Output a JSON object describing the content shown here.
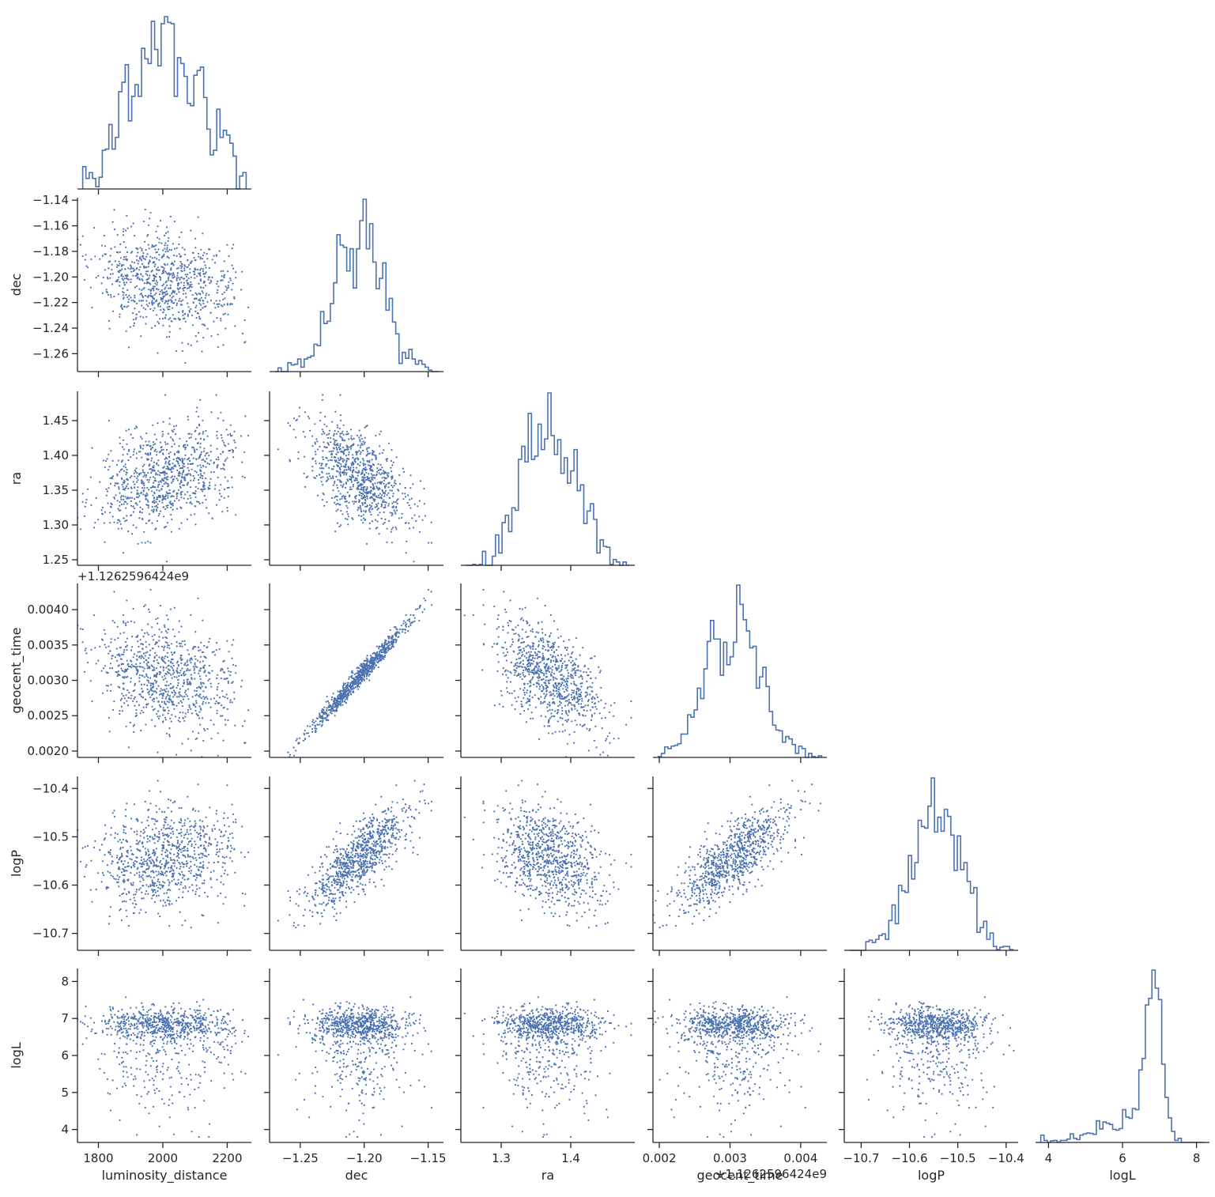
{
  "chart_data": {
    "type": "scatter",
    "title": "",
    "layout": "corner-pairplot",
    "variables": [
      "luminosity_distance",
      "dec",
      "ra",
      "geocent_time",
      "logP",
      "logL"
    ],
    "axis_labels": {
      "x": [
        "luminosity_distance",
        "dec",
        "ra",
        "geocent_time",
        "logP",
        "logL"
      ],
      "y": [
        "",
        "dec",
        "ra",
        "geocent_time",
        "logP",
        "logL"
      ]
    },
    "offset_text": "+1.1262596424e9",
    "series_color": "#4c72b0",
    "ranges": {
      "luminosity_distance": [
        1735,
        2275
      ],
      "dec": [
        -1.274,
        -1.138
      ],
      "ra": [
        1.242,
        1.492
      ],
      "geocent_time": [
        0.00191,
        0.00437
      ],
      "logP": [
        -10.735,
        -10.375
      ],
      "logL": [
        3.65,
        8.35
      ]
    },
    "ticks": {
      "luminosity_distance": [
        1800,
        2000,
        2200
      ],
      "dec": [
        -1.26,
        -1.24,
        -1.22,
        -1.2,
        -1.18,
        -1.16,
        -1.14
      ],
      "dec_x": [
        -1.25,
        -1.2,
        -1.15
      ],
      "ra": [
        1.25,
        1.3,
        1.35,
        1.4,
        1.45
      ],
      "ra_x": [
        1.3,
        1.4
      ],
      "geocent_time": [
        0.002,
        0.0025,
        0.003,
        0.0035,
        0.004
      ],
      "geocent_time_x": [
        0.002,
        0.003,
        0.004
      ],
      "logP": [
        -10.7,
        -10.6,
        -10.5,
        -10.4
      ],
      "logL": [
        4,
        5,
        6,
        7,
        8
      ],
      "logL_x": [
        4,
        6,
        8
      ]
    },
    "tick_labels": {
      "luminosity_distance": [
        "1800",
        "2000",
        "2200"
      ],
      "dec_y": [
        "−1.26",
        "−1.24",
        "−1.22",
        "−1.20",
        "−1.18",
        "−1.16",
        "−1.14"
      ],
      "dec_x": [
        "−1.25",
        "−1.20",
        "−1.15"
      ],
      "ra_y": [
        "1.25",
        "1.30",
        "1.35",
        "1.40",
        "1.45"
      ],
      "ra_x": [
        "1.3",
        "1.4"
      ],
      "geocent_time_y": [
        "0.0020",
        "0.0025",
        "0.0030",
        "0.0035",
        "0.0040"
      ],
      "geocent_time_x": [
        "0.002",
        "0.003",
        "0.004"
      ],
      "logP": [
        "−10.7",
        "−10.6",
        "−10.5",
        "−10.4"
      ],
      "logL_y": [
        "4",
        "5",
        "6",
        "7",
        "8"
      ],
      "logL_x": [
        "4",
        "6",
        "8"
      ]
    },
    "marginals": {
      "luminosity_distance": {
        "mean": 2005,
        "sd": 105
      },
      "dec": {
        "mean": -1.204,
        "sd": 0.02
      },
      "ra": {
        "mean": 1.369,
        "sd": 0.04
      },
      "geocent_time": {
        "mean": 0.00305,
        "sd": 0.0004
      },
      "logP": {
        "mean": -10.545,
        "sd": 0.06
      },
      "logL": {
        "mode": 6.85,
        "description": "left-skewed, sharp peak near 6.85, tail down to about 3.8"
      }
    },
    "correlations": [
      {
        "x": "luminosity_distance",
        "y": "dec",
        "r": -0.3
      },
      {
        "x": "luminosity_distance",
        "y": "ra",
        "r": 0.3
      },
      {
        "x": "dec",
        "y": "ra",
        "r": -0.55
      },
      {
        "x": "luminosity_distance",
        "y": "geocent_time",
        "r": -0.3
      },
      {
        "x": "dec",
        "y": "geocent_time",
        "r": 0.99
      },
      {
        "x": "ra",
        "y": "geocent_time",
        "r": -0.6
      },
      {
        "x": "luminosity_distance",
        "y": "logP",
        "r": 0.35
      },
      {
        "x": "dec",
        "y": "logP",
        "r": 0.85
      },
      {
        "x": "ra",
        "y": "logP",
        "r": -0.3
      },
      {
        "x": "geocent_time",
        "y": "logP",
        "r": 0.8
      },
      {
        "x": "luminosity_distance",
        "y": "logL",
        "r": 0.05
      },
      {
        "x": "dec",
        "y": "logL",
        "r": 0.05
      },
      {
        "x": "ra",
        "y": "logL",
        "r": -0.1
      },
      {
        "x": "geocent_time",
        "y": "logL",
        "r": 0.05
      },
      {
        "x": "logP",
        "y": "logL",
        "r": 0.1
      }
    ],
    "grid": false,
    "legend": "none"
  }
}
